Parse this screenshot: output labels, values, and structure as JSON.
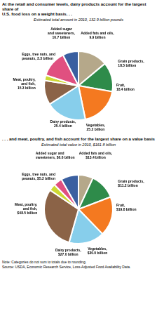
{
  "chart_data": [
    {
      "type": "pie",
      "title": "At the retail and consumer levels, dairy products account for the largest share of\nU.S. food loss on a weight basis. . .",
      "subtitle": "Estimated total amount in 2010, 132.9 billion pounds",
      "categories": [
        "Grain products,\n18.5 billion",
        "Fruit,\n18.4 billion",
        "Vegetables,\n25.2 billion",
        "Dairy products,\n25.4 billion",
        "Meat, poultry,\nand fish,\n15.3 billion",
        "Eggs, tree nuts, and\npeanuts, 3.3 billion",
        "Added sugar\nand sweeteners,\n16.7 billion",
        "Added fats and oils,\n9.9 billion"
      ],
      "values": [
        18.5,
        18.4,
        25.2,
        25.4,
        15.3,
        3.3,
        16.7,
        9.9
      ],
      "colors": [
        "#b5a88a",
        "#2e8b4a",
        "#f47920",
        "#87ceeb",
        "#8b6347",
        "#cdd832",
        "#e05080",
        "#3a5fa0"
      ]
    },
    {
      "type": "pie",
      "title": ". . . and meat, poultry, and fish account for the largest share on a value basis",
      "subtitle": "Estimated total value in 2010, $161.8 billion",
      "categories": [
        "Grain products,\n$11.2 billion",
        "Fruit,\n$19.8 billion",
        "Vegetables,\n$30.0 billion",
        "Dairy products,\n$27.0 billion",
        "Meat, poultry,\nand fish,\n$48.5 billion",
        "Eggs, tree nuts, and\npeanuts, $5.2 billion",
        "Added sugar and\nsweeteners, $6.6 billion",
        "Added fats and oils,\n$13.4 billion"
      ],
      "values": [
        11.2,
        19.8,
        30.0,
        27.0,
        48.5,
        5.2,
        6.6,
        13.4
      ],
      "colors": [
        "#b5a88a",
        "#2e8b4a",
        "#f47920",
        "#87ceeb",
        "#8b6347",
        "#cdd832",
        "#e05080",
        "#3a5fa0"
      ],
      "annotations": [
        "Note: Categories do not sum to totals due to rounding.",
        "Source: USDA, Economic Research Service, Loss-Adjusted Food Availability Data."
      ]
    }
  ]
}
